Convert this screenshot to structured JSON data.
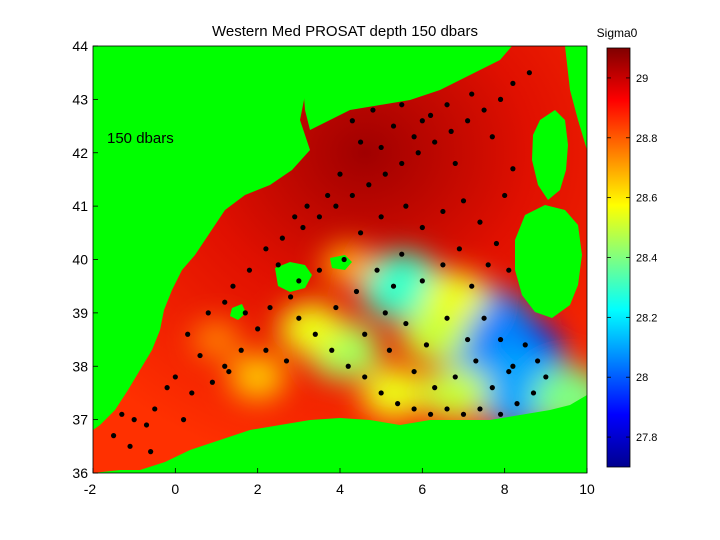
{
  "chart_data": {
    "type": "heatmap",
    "title": "Western Med PROSAT  depth 150 dbars",
    "annotation": "150 dbars",
    "xlabel": "",
    "ylabel": "",
    "xlim": [
      -2,
      10
    ],
    "ylim": [
      36,
      44
    ],
    "x_ticks": [
      "-2",
      "0",
      "2",
      "4",
      "6",
      "8",
      "10"
    ],
    "x_tick_values": [
      -2,
      0,
      2,
      4,
      6,
      8,
      10
    ],
    "y_ticks": [
      "36",
      "37",
      "38",
      "39",
      "40",
      "41",
      "42",
      "43",
      "44"
    ],
    "y_tick_values": [
      36,
      37,
      38,
      39,
      40,
      41,
      42,
      43,
      44
    ],
    "colorbar": {
      "label": "Sigma0",
      "range": [
        27.7,
        29.1
      ],
      "ticks": [
        "27.8",
        "28",
        "28.2",
        "28.4",
        "28.6",
        "28.8",
        "29"
      ],
      "tick_values": [
        27.8,
        28.0,
        28.2,
        28.4,
        28.6,
        28.8,
        29.0
      ],
      "colormap": "jet"
    },
    "land_color": "#00ff00",
    "station_color": "#000000",
    "field_blobs": [
      {
        "lon": 5.5,
        "lat": 39.5,
        "sigma": 28.3
      },
      {
        "lon": 8.0,
        "lat": 38.1,
        "sigma": 27.85
      },
      {
        "lon": 7.4,
        "lat": 38.7,
        "sigma": 28.05
      },
      {
        "lon": 8.4,
        "lat": 37.6,
        "sigma": 28.1
      },
      {
        "lon": 4.1,
        "lat": 38.3,
        "sigma": 28.45
      },
      {
        "lon": 3.3,
        "lat": 38.7,
        "sigma": 28.55
      },
      {
        "lon": 6.3,
        "lat": 38.6,
        "sigma": 28.5
      },
      {
        "lon": 6.8,
        "lat": 39.3,
        "sigma": 28.55
      },
      {
        "lon": 5.3,
        "lat": 37.5,
        "sigma": 28.55
      },
      {
        "lon": 6.8,
        "lat": 37.5,
        "sigma": 28.5
      },
      {
        "lon": 2.0,
        "lat": 37.8,
        "sigma": 28.65
      },
      {
        "lon": 9.6,
        "lat": 37.4,
        "sigma": 28.4
      },
      {
        "lon": 4.2,
        "lat": 39.9,
        "sigma": 28.7
      },
      {
        "lon": 1.0,
        "lat": 38.5,
        "sigma": 28.75
      }
    ],
    "stations": [
      [
        -1.3,
        37.1
      ],
      [
        -1.0,
        37.0
      ],
      [
        -0.7,
        36.9
      ],
      [
        -0.5,
        37.2
      ],
      [
        -0.2,
        37.6
      ],
      [
        0.0,
        37.8
      ],
      [
        0.4,
        37.5
      ],
      [
        0.9,
        37.7
      ],
      [
        1.3,
        37.9
      ],
      [
        1.6,
        38.3
      ],
      [
        2.0,
        38.7
      ],
      [
        2.3,
        39.1
      ],
      [
        2.8,
        39.3
      ],
      [
        3.0,
        38.9
      ],
      [
        3.4,
        38.6
      ],
      [
        3.8,
        38.3
      ],
      [
        4.2,
        38.0
      ],
      [
        4.6,
        37.8
      ],
      [
        5.0,
        37.5
      ],
      [
        5.4,
        37.3
      ],
      [
        5.8,
        37.2
      ],
      [
        6.2,
        37.1
      ],
      [
        6.6,
        37.2
      ],
      [
        7.0,
        37.1
      ],
      [
        7.4,
        37.2
      ],
      [
        7.9,
        37.1
      ],
      [
        8.3,
        37.3
      ],
      [
        8.7,
        37.5
      ],
      [
        1.4,
        39.5
      ],
      [
        1.8,
        39.8
      ],
      [
        2.2,
        40.2
      ],
      [
        2.6,
        40.4
      ],
      [
        3.1,
        40.6
      ],
      [
        3.5,
        40.8
      ],
      [
        3.9,
        41.0
      ],
      [
        4.3,
        41.2
      ],
      [
        4.7,
        41.4
      ],
      [
        5.1,
        41.6
      ],
      [
        5.5,
        41.8
      ],
      [
        5.9,
        42.0
      ],
      [
        6.3,
        42.2
      ],
      [
        6.7,
        42.4
      ],
      [
        7.1,
        42.6
      ],
      [
        7.5,
        42.8
      ],
      [
        7.9,
        43.0
      ],
      [
        8.2,
        43.3
      ],
      [
        8.6,
        43.5
      ],
      [
        4.3,
        42.6
      ],
      [
        4.8,
        42.8
      ],
      [
        5.3,
        42.5
      ],
      [
        5.8,
        42.3
      ],
      [
        6.2,
        42.7
      ],
      [
        4.0,
        41.6
      ],
      [
        3.7,
        41.2
      ],
      [
        3.2,
        41.0
      ],
      [
        2.9,
        40.8
      ],
      [
        4.5,
        40.5
      ],
      [
        5.0,
        40.8
      ],
      [
        5.6,
        41.0
      ],
      [
        6.0,
        40.6
      ],
      [
        6.5,
        40.9
      ],
      [
        7.0,
        41.1
      ],
      [
        7.4,
        40.7
      ],
      [
        7.8,
        40.3
      ],
      [
        8.1,
        39.8
      ],
      [
        6.5,
        39.9
      ],
      [
        6.0,
        39.6
      ],
      [
        5.5,
        40.1
      ],
      [
        4.9,
        39.8
      ],
      [
        4.4,
        39.4
      ],
      [
        3.9,
        39.1
      ],
      [
        5.1,
        39.0
      ],
      [
        5.6,
        38.8
      ],
      [
        6.1,
        38.4
      ],
      [
        6.6,
        38.9
      ],
      [
        7.1,
        38.5
      ],
      [
        7.5,
        38.9
      ],
      [
        7.9,
        38.5
      ],
      [
        8.2,
        38.0
      ],
      [
        8.5,
        38.4
      ],
      [
        7.3,
        38.1
      ],
      [
        6.8,
        37.8
      ],
      [
        6.3,
        37.6
      ],
      [
        5.8,
        37.9
      ],
      [
        5.2,
        38.3
      ],
      [
        4.6,
        38.6
      ],
      [
        2.7,
        38.1
      ],
      [
        2.2,
        38.3
      ],
      [
        1.2,
        38.0
      ],
      [
        0.6,
        38.2
      ],
      [
        0.3,
        38.6
      ],
      [
        0.8,
        39.0
      ],
      [
        1.2,
        39.2
      ],
      [
        1.7,
        39.0
      ],
      [
        -1.5,
        36.7
      ],
      [
        -1.1,
        36.5
      ],
      [
        -0.6,
        36.4
      ],
      [
        0.2,
        37.0
      ],
      [
        8.8,
        38.1
      ],
      [
        9.0,
        37.8
      ],
      [
        4.5,
        42.2
      ],
      [
        5.0,
        42.1
      ],
      [
        5.5,
        42.9
      ],
      [
        6.6,
        42.9
      ],
      [
        7.2,
        43.1
      ],
      [
        7.7,
        42.3
      ],
      [
        8.2,
        41.7
      ],
      [
        8.0,
        41.2
      ],
      [
        7.6,
        39.9
      ],
      [
        7.2,
        39.5
      ],
      [
        3.0,
        39.6
      ],
      [
        3.5,
        39.8
      ],
      [
        2.5,
        39.9
      ],
      [
        6.0,
        42.6
      ],
      [
        6.8,
        41.8
      ],
      [
        4.1,
        40.0
      ],
      [
        5.3,
        39.5
      ],
      [
        6.9,
        40.2
      ],
      [
        7.7,
        37.6
      ],
      [
        8.1,
        37.9
      ]
    ]
  }
}
